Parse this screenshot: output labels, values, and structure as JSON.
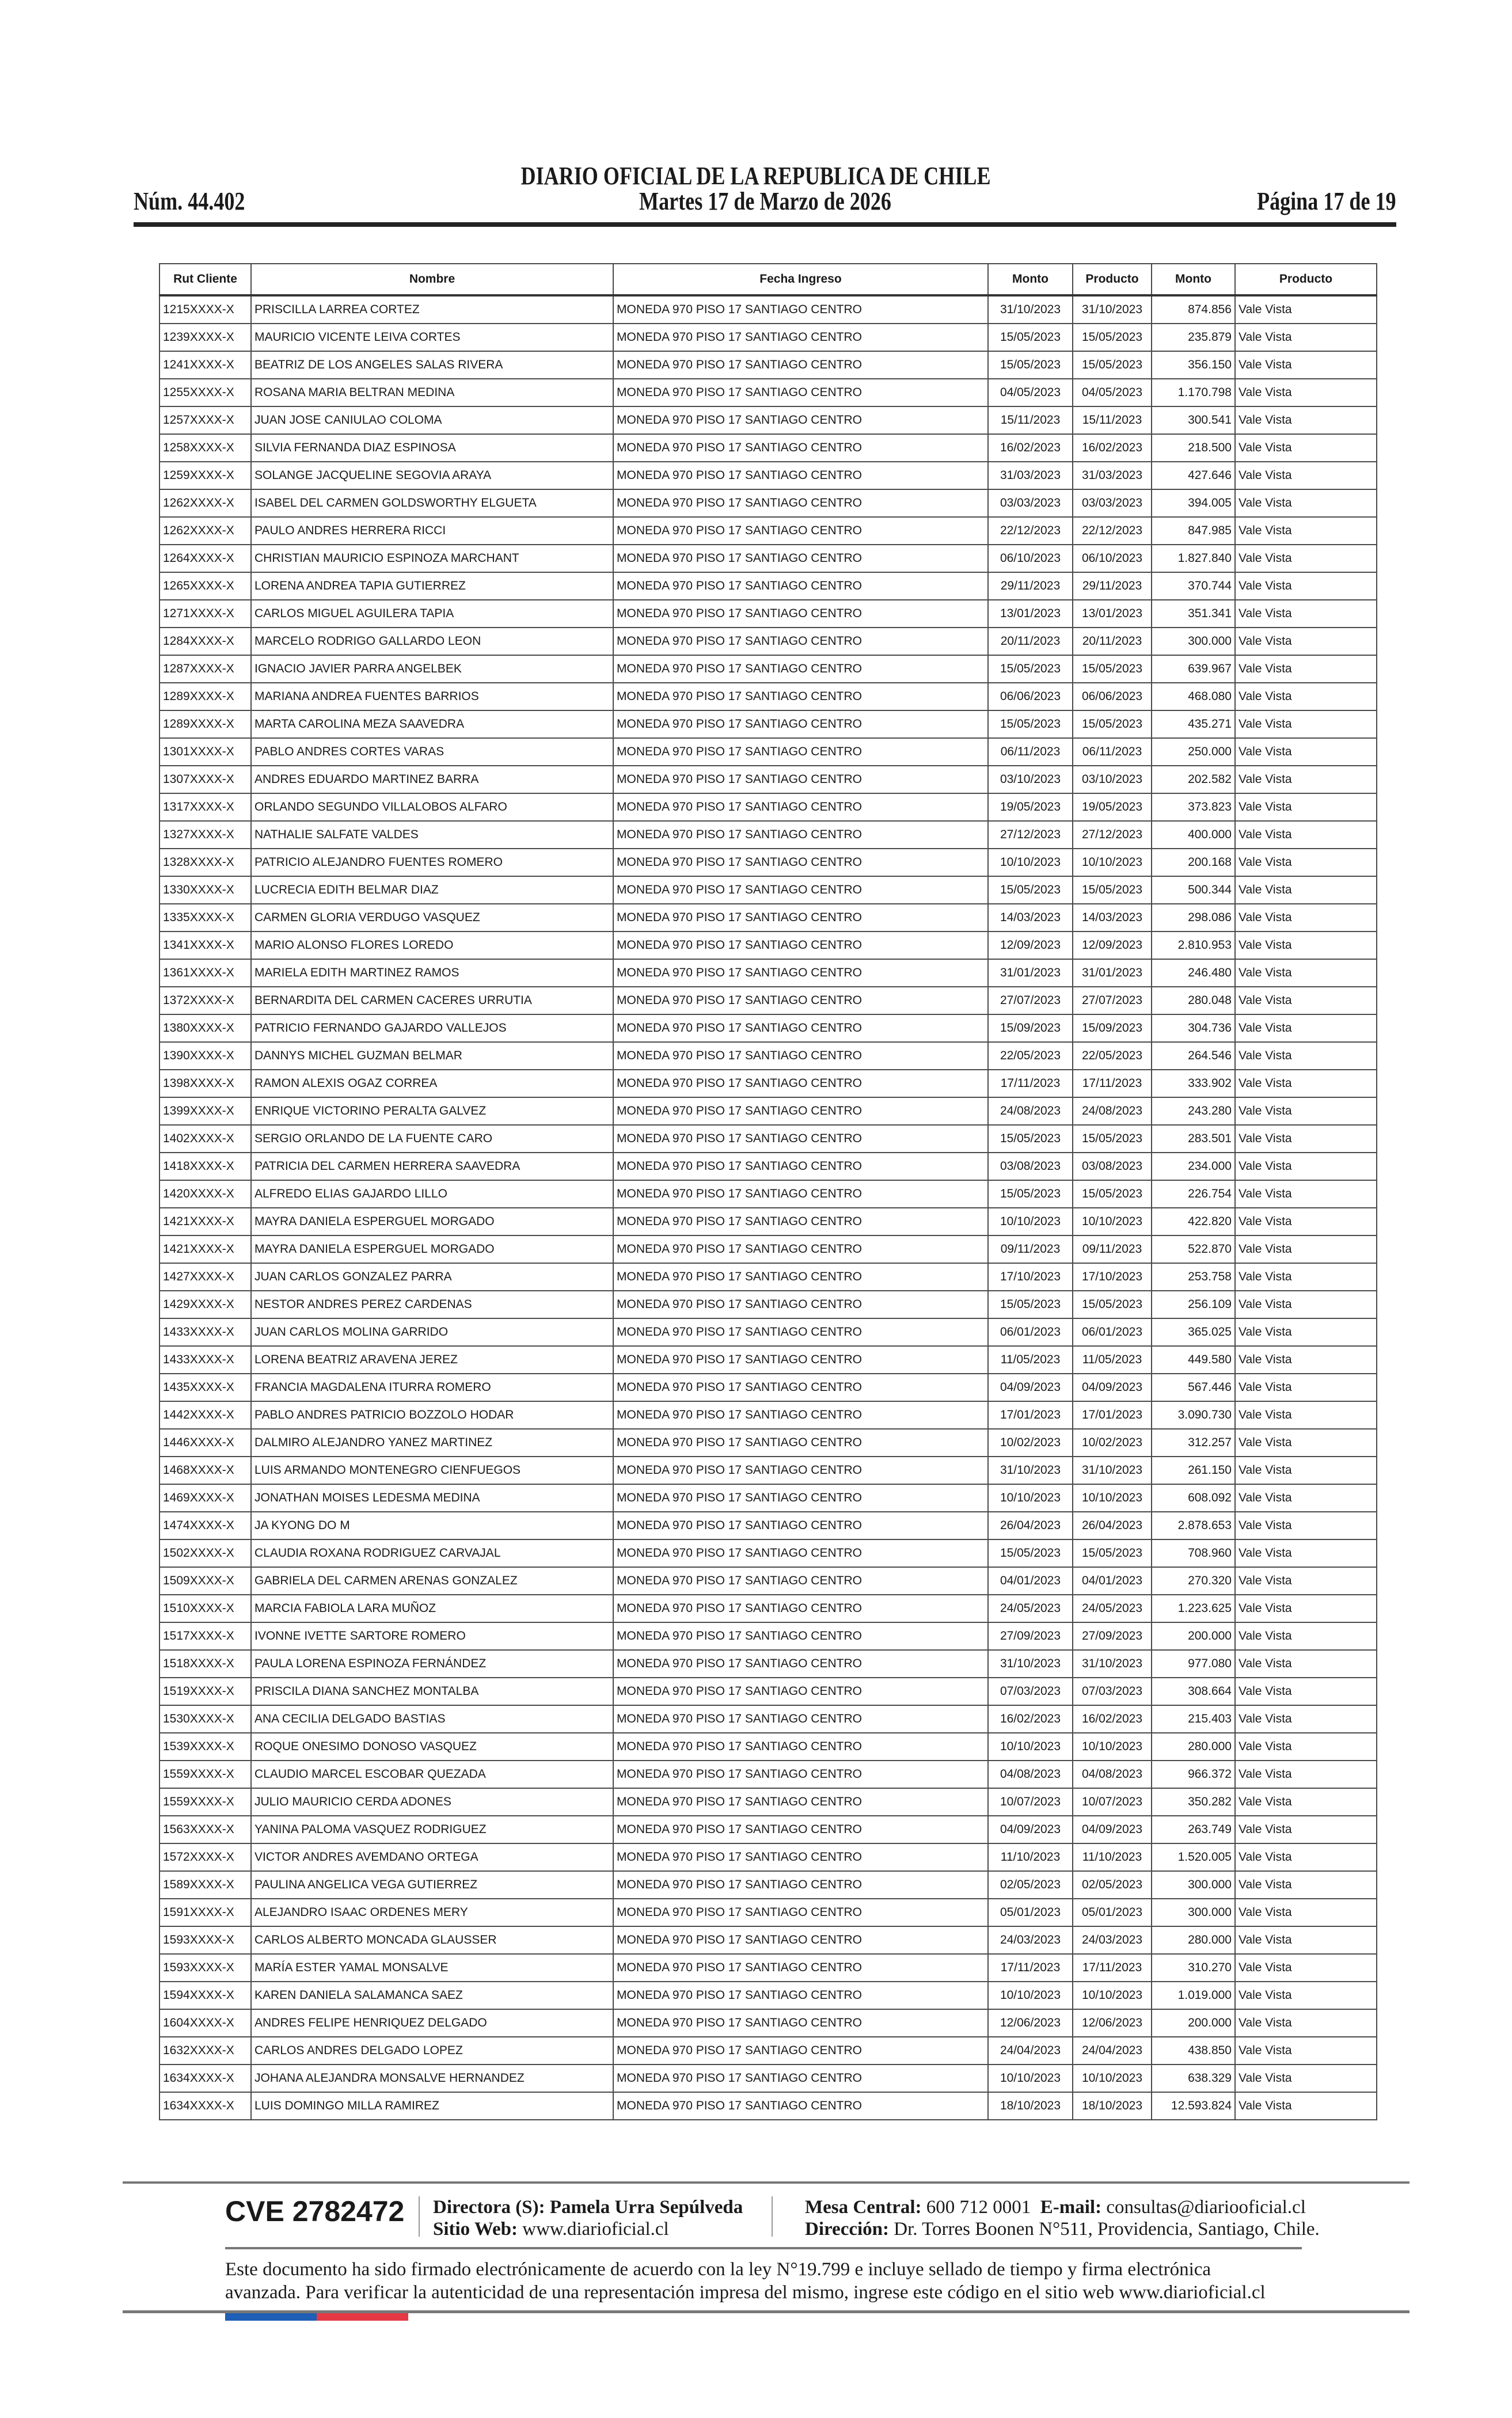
{
  "header": {
    "title": "DIARIO OFICIAL DE LA REPUBLICA DE CHILE",
    "issue_number": "Núm. 44.402",
    "date": "Martes 17 de Marzo de 2026",
    "page": "Página 17 de 19"
  },
  "table": {
    "columns": [
      "Rut Cliente",
      "Nombre",
      "Fecha Ingreso",
      "Monto",
      "Producto",
      "Monto",
      "Producto"
    ],
    "rows": [
      [
        "1215XXXX-X",
        "PRISCILLA LARREA CORTEZ",
        "MONEDA 970 PISO 17 SANTIAGO CENTRO",
        "31/10/2023",
        "31/10/2023",
        "874.856",
        "Vale Vista"
      ],
      [
        "1239XXXX-X",
        "MAURICIO VICENTE LEIVA CORTES",
        "MONEDA 970 PISO 17 SANTIAGO CENTRO",
        "15/05/2023",
        "15/05/2023",
        "235.879",
        "Vale Vista"
      ],
      [
        "1241XXXX-X",
        "BEATRIZ DE LOS ANGELES SALAS RIVERA",
        "MONEDA 970 PISO 17 SANTIAGO CENTRO",
        "15/05/2023",
        "15/05/2023",
        "356.150",
        "Vale Vista"
      ],
      [
        "1255XXXX-X",
        "ROSANA MARIA BELTRAN MEDINA",
        "MONEDA 970 PISO 17 SANTIAGO CENTRO",
        "04/05/2023",
        "04/05/2023",
        "1.170.798",
        "Vale Vista"
      ],
      [
        "1257XXXX-X",
        "JUAN JOSE CANIULAO COLOMA",
        "MONEDA 970 PISO 17 SANTIAGO CENTRO",
        "15/11/2023",
        "15/11/2023",
        "300.541",
        "Vale Vista"
      ],
      [
        "1258XXXX-X",
        "SILVIA FERNANDA DIAZ ESPINOSA",
        "MONEDA 970 PISO 17 SANTIAGO CENTRO",
        "16/02/2023",
        "16/02/2023",
        "218.500",
        "Vale Vista"
      ],
      [
        "1259XXXX-X",
        "SOLANGE JACQUELINE SEGOVIA ARAYA",
        "MONEDA 970 PISO 17 SANTIAGO CENTRO",
        "31/03/2023",
        "31/03/2023",
        "427.646",
        "Vale Vista"
      ],
      [
        "1262XXXX-X",
        "ISABEL DEL CARMEN GOLDSWORTHY ELGUETA",
        "MONEDA 970 PISO 17 SANTIAGO CENTRO",
        "03/03/2023",
        "03/03/2023",
        "394.005",
        "Vale Vista"
      ],
      [
        "1262XXXX-X",
        "PAULO ANDRES HERRERA RICCI",
        "MONEDA 970 PISO 17 SANTIAGO CENTRO",
        "22/12/2023",
        "22/12/2023",
        "847.985",
        "Vale Vista"
      ],
      [
        "1264XXXX-X",
        "CHRISTIAN MAURICIO ESPINOZA MARCHANT",
        "MONEDA 970 PISO 17 SANTIAGO CENTRO",
        "06/10/2023",
        "06/10/2023",
        "1.827.840",
        "Vale Vista"
      ],
      [
        "1265XXXX-X",
        "LORENA ANDREA TAPIA GUTIERREZ",
        "MONEDA 970 PISO 17 SANTIAGO CENTRO",
        "29/11/2023",
        "29/11/2023",
        "370.744",
        "Vale Vista"
      ],
      [
        "1271XXXX-X",
        "CARLOS MIGUEL AGUILERA TAPIA",
        "MONEDA 970 PISO 17 SANTIAGO CENTRO",
        "13/01/2023",
        "13/01/2023",
        "351.341",
        "Vale Vista"
      ],
      [
        "1284XXXX-X",
        "MARCELO RODRIGO GALLARDO LEON",
        "MONEDA 970 PISO 17 SANTIAGO CENTRO",
        "20/11/2023",
        "20/11/2023",
        "300.000",
        "Vale Vista"
      ],
      [
        "1287XXXX-X",
        "IGNACIO JAVIER PARRA ANGELBEK",
        "MONEDA 970 PISO 17 SANTIAGO CENTRO",
        "15/05/2023",
        "15/05/2023",
        "639.967",
        "Vale Vista"
      ],
      [
        "1289XXXX-X",
        "MARIANA ANDREA FUENTES BARRIOS",
        "MONEDA 970 PISO 17 SANTIAGO CENTRO",
        "06/06/2023",
        "06/06/2023",
        "468.080",
        "Vale Vista"
      ],
      [
        "1289XXXX-X",
        "MARTA CAROLINA MEZA SAAVEDRA",
        "MONEDA 970 PISO 17 SANTIAGO CENTRO",
        "15/05/2023",
        "15/05/2023",
        "435.271",
        "Vale Vista"
      ],
      [
        "1301XXXX-X",
        "PABLO ANDRES CORTES VARAS",
        "MONEDA 970 PISO 17 SANTIAGO CENTRO",
        "06/11/2023",
        "06/11/2023",
        "250.000",
        "Vale Vista"
      ],
      [
        "1307XXXX-X",
        "ANDRES EDUARDO MARTINEZ BARRA",
        "MONEDA 970 PISO 17 SANTIAGO CENTRO",
        "03/10/2023",
        "03/10/2023",
        "202.582",
        "Vale Vista"
      ],
      [
        "1317XXXX-X",
        "ORLANDO SEGUNDO VILLALOBOS ALFARO",
        "MONEDA 970 PISO 17 SANTIAGO CENTRO",
        "19/05/2023",
        "19/05/2023",
        "373.823",
        "Vale Vista"
      ],
      [
        "1327XXXX-X",
        "NATHALIE SALFATE VALDES",
        "MONEDA 970 PISO 17 SANTIAGO CENTRO",
        "27/12/2023",
        "27/12/2023",
        "400.000",
        "Vale Vista"
      ],
      [
        "1328XXXX-X",
        "PATRICIO ALEJANDRO FUENTES ROMERO",
        "MONEDA 970 PISO 17 SANTIAGO CENTRO",
        "10/10/2023",
        "10/10/2023",
        "200.168",
        "Vale Vista"
      ],
      [
        "1330XXXX-X",
        "LUCRECIA EDITH BELMAR DIAZ",
        "MONEDA 970 PISO 17 SANTIAGO CENTRO",
        "15/05/2023",
        "15/05/2023",
        "500.344",
        "Vale Vista"
      ],
      [
        "1335XXXX-X",
        "CARMEN GLORIA VERDUGO VASQUEZ",
        "MONEDA 970 PISO 17 SANTIAGO CENTRO",
        "14/03/2023",
        "14/03/2023",
        "298.086",
        "Vale Vista"
      ],
      [
        "1341XXXX-X",
        "MARIO ALONSO FLORES LOREDO",
        "MONEDA 970 PISO 17 SANTIAGO CENTRO",
        "12/09/2023",
        "12/09/2023",
        "2.810.953",
        "Vale Vista"
      ],
      [
        "1361XXXX-X",
        "MARIELA EDITH MARTINEZ RAMOS",
        "MONEDA 970 PISO 17 SANTIAGO CENTRO",
        "31/01/2023",
        "31/01/2023",
        "246.480",
        "Vale Vista"
      ],
      [
        "1372XXXX-X",
        "BERNARDITA DEL CARMEN CACERES URRUTIA",
        "MONEDA 970 PISO 17 SANTIAGO CENTRO",
        "27/07/2023",
        "27/07/2023",
        "280.048",
        "Vale Vista"
      ],
      [
        "1380XXXX-X",
        "PATRICIO FERNANDO GAJARDO VALLEJOS",
        "MONEDA 970 PISO 17 SANTIAGO CENTRO",
        "15/09/2023",
        "15/09/2023",
        "304.736",
        "Vale Vista"
      ],
      [
        "1390XXXX-X",
        "DANNYS MICHEL GUZMAN BELMAR",
        "MONEDA 970 PISO 17 SANTIAGO CENTRO",
        "22/05/2023",
        "22/05/2023",
        "264.546",
        "Vale Vista"
      ],
      [
        "1398XXXX-X",
        "RAMON ALEXIS OGAZ CORREA",
        "MONEDA 970 PISO 17 SANTIAGO CENTRO",
        "17/11/2023",
        "17/11/2023",
        "333.902",
        "Vale Vista"
      ],
      [
        "1399XXXX-X",
        "ENRIQUE VICTORINO PERALTA GALVEZ",
        "MONEDA 970 PISO 17 SANTIAGO CENTRO",
        "24/08/2023",
        "24/08/2023",
        "243.280",
        "Vale Vista"
      ],
      [
        "1402XXXX-X",
        "SERGIO ORLANDO DE LA FUENTE CARO",
        "MONEDA 970 PISO 17 SANTIAGO CENTRO",
        "15/05/2023",
        "15/05/2023",
        "283.501",
        "Vale Vista"
      ],
      [
        "1418XXXX-X",
        "PATRICIA DEL CARMEN HERRERA SAAVEDRA",
        "MONEDA 970 PISO 17 SANTIAGO CENTRO",
        "03/08/2023",
        "03/08/2023",
        "234.000",
        "Vale Vista"
      ],
      [
        "1420XXXX-X",
        "ALFREDO ELIAS GAJARDO LILLO",
        "MONEDA 970 PISO 17 SANTIAGO CENTRO",
        "15/05/2023",
        "15/05/2023",
        "226.754",
        "Vale Vista"
      ],
      [
        "1421XXXX-X",
        "MAYRA DANIELA ESPERGUEL MORGADO",
        "MONEDA 970 PISO 17 SANTIAGO CENTRO",
        "10/10/2023",
        "10/10/2023",
        "422.820",
        "Vale Vista"
      ],
      [
        "1421XXXX-X",
        "MAYRA DANIELA ESPERGUEL MORGADO",
        "MONEDA 970 PISO 17 SANTIAGO CENTRO",
        "09/11/2023",
        "09/11/2023",
        "522.870",
        "Vale Vista"
      ],
      [
        "1427XXXX-X",
        "JUAN CARLOS GONZALEZ PARRA",
        "MONEDA 970 PISO 17 SANTIAGO CENTRO",
        "17/10/2023",
        "17/10/2023",
        "253.758",
        "Vale Vista"
      ],
      [
        "1429XXXX-X",
        "NESTOR ANDRES PEREZ CARDENAS",
        "MONEDA 970 PISO 17 SANTIAGO CENTRO",
        "15/05/2023",
        "15/05/2023",
        "256.109",
        "Vale Vista"
      ],
      [
        "1433XXXX-X",
        "JUAN CARLOS MOLINA GARRIDO",
        "MONEDA 970 PISO 17 SANTIAGO CENTRO",
        "06/01/2023",
        "06/01/2023",
        "365.025",
        "Vale Vista"
      ],
      [
        "1433XXXX-X",
        "LORENA BEATRIZ ARAVENA JEREZ",
        "MONEDA 970 PISO 17 SANTIAGO CENTRO",
        "11/05/2023",
        "11/05/2023",
        "449.580",
        "Vale Vista"
      ],
      [
        "1435XXXX-X",
        "FRANCIA MAGDALENA ITURRA ROMERO",
        "MONEDA 970 PISO 17 SANTIAGO CENTRO",
        "04/09/2023",
        "04/09/2023",
        "567.446",
        "Vale Vista"
      ],
      [
        "1442XXXX-X",
        "PABLO ANDRES PATRICIO BOZZOLO HODAR",
        "MONEDA 970 PISO 17 SANTIAGO CENTRO",
        "17/01/2023",
        "17/01/2023",
        "3.090.730",
        "Vale Vista"
      ],
      [
        "1446XXXX-X",
        "DALMIRO ALEJANDRO YANEZ MARTINEZ",
        "MONEDA 970 PISO 17 SANTIAGO CENTRO",
        "10/02/2023",
        "10/02/2023",
        "312.257",
        "Vale Vista"
      ],
      [
        "1468XXXX-X",
        "LUIS ARMANDO MONTENEGRO CIENFUEGOS",
        "MONEDA 970 PISO 17 SANTIAGO CENTRO",
        "31/10/2023",
        "31/10/2023",
        "261.150",
        "Vale Vista"
      ],
      [
        "1469XXXX-X",
        "JONATHAN MOISES LEDESMA MEDINA",
        "MONEDA 970 PISO 17 SANTIAGO CENTRO",
        "10/10/2023",
        "10/10/2023",
        "608.092",
        "Vale Vista"
      ],
      [
        "1474XXXX-X",
        "JA KYONG DO M",
        "MONEDA 970 PISO 17 SANTIAGO CENTRO",
        "26/04/2023",
        "26/04/2023",
        "2.878.653",
        "Vale Vista"
      ],
      [
        "1502XXXX-X",
        "CLAUDIA ROXANA RODRIGUEZ CARVAJAL",
        "MONEDA 970 PISO 17 SANTIAGO CENTRO",
        "15/05/2023",
        "15/05/2023",
        "708.960",
        "Vale Vista"
      ],
      [
        "1509XXXX-X",
        "GABRIELA DEL CARMEN ARENAS GONZALEZ",
        "MONEDA 970 PISO 17 SANTIAGO CENTRO",
        "04/01/2023",
        "04/01/2023",
        "270.320",
        "Vale Vista"
      ],
      [
        "1510XXXX-X",
        "MARCIA FABIOLA LARA MUÑOZ",
        "MONEDA 970 PISO 17 SANTIAGO CENTRO",
        "24/05/2023",
        "24/05/2023",
        "1.223.625",
        "Vale Vista"
      ],
      [
        "1517XXXX-X",
        "IVONNE IVETTE SARTORE ROMERO",
        "MONEDA 970 PISO 17 SANTIAGO CENTRO",
        "27/09/2023",
        "27/09/2023",
        "200.000",
        "Vale Vista"
      ],
      [
        "1518XXXX-X",
        "PAULA LORENA ESPINOZA FERNÁNDEZ",
        "MONEDA 970 PISO 17 SANTIAGO CENTRO",
        "31/10/2023",
        "31/10/2023",
        "977.080",
        "Vale Vista"
      ],
      [
        "1519XXXX-X",
        "PRISCILA DIANA SANCHEZ MONTALBA",
        "MONEDA 970 PISO 17 SANTIAGO CENTRO",
        "07/03/2023",
        "07/03/2023",
        "308.664",
        "Vale Vista"
      ],
      [
        "1530XXXX-X",
        "ANA CECILIA DELGADO BASTIAS",
        "MONEDA 970 PISO 17 SANTIAGO CENTRO",
        "16/02/2023",
        "16/02/2023",
        "215.403",
        "Vale Vista"
      ],
      [
        "1539XXXX-X",
        "ROQUE ONESIMO DONOSO VASQUEZ",
        "MONEDA 970 PISO 17 SANTIAGO CENTRO",
        "10/10/2023",
        "10/10/2023",
        "280.000",
        "Vale Vista"
      ],
      [
        "1559XXXX-X",
        "CLAUDIO MARCEL ESCOBAR QUEZADA",
        "MONEDA 970 PISO 17 SANTIAGO CENTRO",
        "04/08/2023",
        "04/08/2023",
        "966.372",
        "Vale Vista"
      ],
      [
        "1559XXXX-X",
        "JULIO MAURICIO CERDA ADONES",
        "MONEDA 970 PISO 17 SANTIAGO CENTRO",
        "10/07/2023",
        "10/07/2023",
        "350.282",
        "Vale Vista"
      ],
      [
        "1563XXXX-X",
        "YANINA PALOMA VASQUEZ RODRIGUEZ",
        "MONEDA 970 PISO 17 SANTIAGO CENTRO",
        "04/09/2023",
        "04/09/2023",
        "263.749",
        "Vale Vista"
      ],
      [
        "1572XXXX-X",
        "VICTOR ANDRES AVEMDANO ORTEGA",
        "MONEDA 970 PISO 17 SANTIAGO CENTRO",
        "11/10/2023",
        "11/10/2023",
        "1.520.005",
        "Vale Vista"
      ],
      [
        "1589XXXX-X",
        "PAULINA ANGELICA VEGA GUTIERREZ",
        "MONEDA 970 PISO 17 SANTIAGO CENTRO",
        "02/05/2023",
        "02/05/2023",
        "300.000",
        "Vale Vista"
      ],
      [
        "1591XXXX-X",
        "ALEJANDRO ISAAC ORDENES MERY",
        "MONEDA 970 PISO 17 SANTIAGO CENTRO",
        "05/01/2023",
        "05/01/2023",
        "300.000",
        "Vale Vista"
      ],
      [
        "1593XXXX-X",
        "CARLOS ALBERTO MONCADA GLAUSSER",
        "MONEDA 970 PISO 17 SANTIAGO CENTRO",
        "24/03/2023",
        "24/03/2023",
        "280.000",
        "Vale Vista"
      ],
      [
        "1593XXXX-X",
        "MARÍA ESTER YAMAL MONSALVE",
        "MONEDA 970 PISO 17 SANTIAGO CENTRO",
        "17/11/2023",
        "17/11/2023",
        "310.270",
        "Vale Vista"
      ],
      [
        "1594XXXX-X",
        "KAREN DANIELA SALAMANCA SAEZ",
        "MONEDA 970 PISO 17 SANTIAGO CENTRO",
        "10/10/2023",
        "10/10/2023",
        "1.019.000",
        "Vale Vista"
      ],
      [
        "1604XXXX-X",
        "ANDRES FELIPE HENRIQUEZ DELGADO",
        "MONEDA 970 PISO 17 SANTIAGO CENTRO",
        "12/06/2023",
        "12/06/2023",
        "200.000",
        "Vale Vista"
      ],
      [
        "1632XXXX-X",
        "CARLOS ANDRES DELGADO LOPEZ",
        "MONEDA 970 PISO 17 SANTIAGO CENTRO",
        "24/04/2023",
        "24/04/2023",
        "438.850",
        "Vale Vista"
      ],
      [
        "1634XXXX-X",
        "JOHANA ALEJANDRA MONSALVE HERNANDEZ",
        "MONEDA 970 PISO 17 SANTIAGO CENTRO",
        "10/10/2023",
        "10/10/2023",
        "638.329",
        "Vale Vista"
      ],
      [
        "1634XXXX-X",
        "LUIS DOMINGO MILLA RAMIREZ",
        "MONEDA 970 PISO 17 SANTIAGO CENTRO",
        "18/10/2023",
        "18/10/2023",
        "12.593.824",
        "Vale Vista"
      ]
    ]
  },
  "footer": {
    "cve": "CVE 2782472",
    "director_label": "Directora (S):",
    "director_name": "Pamela Urra Sepúlveda",
    "website_label": "Sitio Web:",
    "website": "www.diarioficial.cl",
    "phone_label": "Mesa Central:",
    "phone": "600 712 0001",
    "email_label": "E-mail:",
    "email": "consultas@diariooficial.cl",
    "address_label": "Dirección:",
    "address": "Dr. Torres Boonen N°511, Providencia, Santiago, Chile.",
    "legal_line1": "Este documento ha sido firmado electrónicamente de acuerdo con la ley N°19.799 e incluye sellado de tiempo y firma electrónica",
    "legal_line2": "avanzada. Para verificar la autenticidad de una representación impresa del mismo, ingrese este código en el sitio web www.diarioficial.cl",
    "flag_colors": [
      "#1f5fb5",
      "#e63946"
    ]
  }
}
